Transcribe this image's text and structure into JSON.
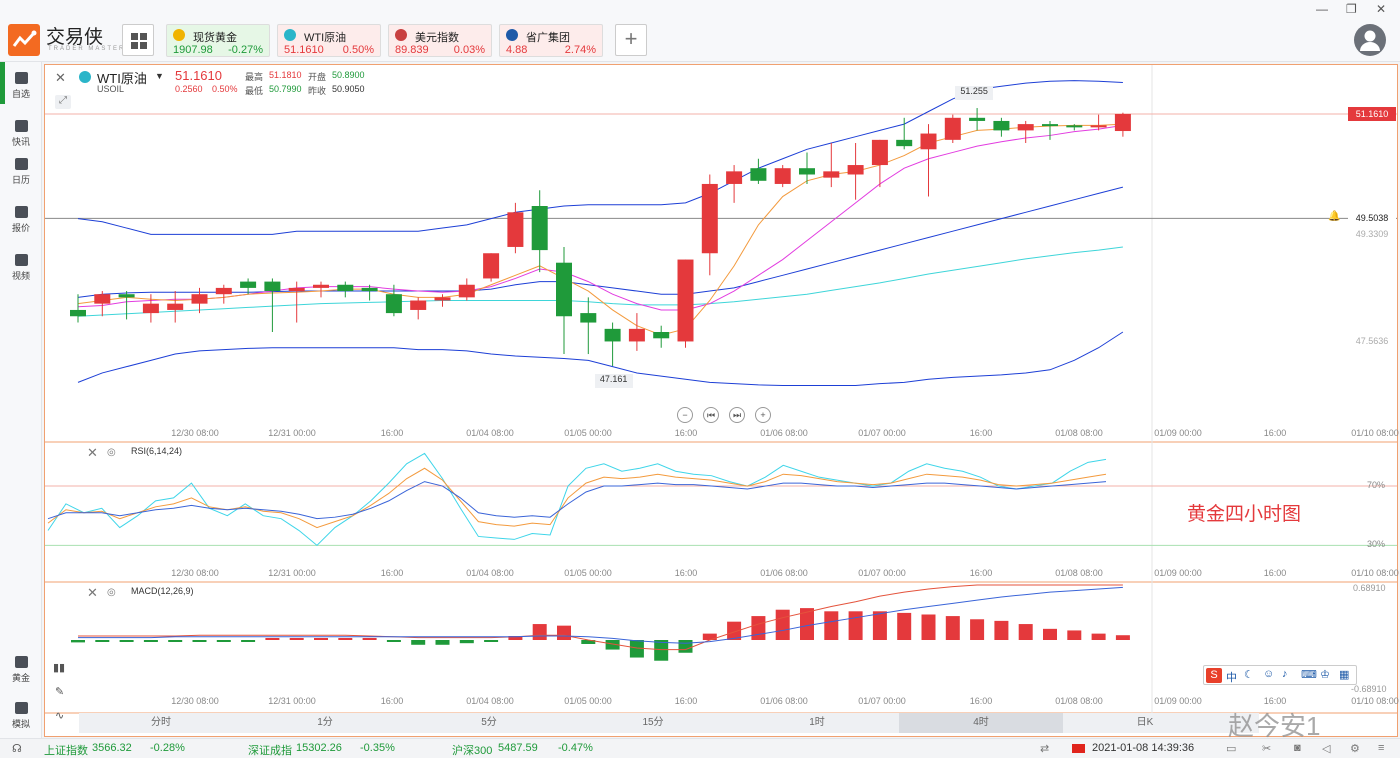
{
  "brand": {
    "name": "交易侠",
    "sub": "TRADER MASTER"
  },
  "tickers": [
    {
      "name": "现货黄金",
      "price": "1907.98",
      "change": "-0.27%",
      "bg": "#e6f7e6",
      "color": "#1f9a3a",
      "icon_color": "#f0b400"
    },
    {
      "name": "WTI原油",
      "price": "51.1610",
      "change": "0.50%",
      "bg": "#fdeceb",
      "color": "#e4393c",
      "icon_color": "#2bb5c9"
    },
    {
      "name": "美元指数",
      "price": "89.839",
      "change": "0.03%",
      "bg": "#fdeceb",
      "color": "#e4393c",
      "icon_color": "#c84040"
    },
    {
      "name": "省广集团",
      "price": "4.88",
      "change": "2.74%",
      "bg": "#fdeceb",
      "color": "#e4393c",
      "icon_color": "#1e5aa8"
    }
  ],
  "sidebar": [
    {
      "label": "自选",
      "icon": "star-bookmark-icon"
    },
    {
      "label": "快讯",
      "icon": "news-icon"
    },
    {
      "label": "日历",
      "icon": "calendar-icon"
    },
    {
      "label": "报价",
      "icon": "chart-line-icon"
    },
    {
      "label": "视频",
      "icon": "video-play-icon"
    },
    {
      "label": "黄金",
      "icon": "gold-icon"
    },
    {
      "label": "模拟",
      "icon": "wallet-icon"
    }
  ],
  "header": {
    "symbol": "WTI原油",
    "code": "USOIL",
    "price": "51.1610",
    "change": "0.2560",
    "change_pct": "0.50%",
    "high_label": "最高",
    "high": "51.1810",
    "open_label": "开盘",
    "open": "50.8900",
    "low_label": "最低",
    "low": "50.7990",
    "prev_label": "昨收",
    "prev": "50.9050"
  },
  "chart_data": [
    {
      "type": "candlestick",
      "title": "WTI原油",
      "x_ticks": [
        "12/30 08:00",
        "12/31 00:00",
        "16:00",
        "01/04 08:00",
        "01/05 00:00",
        "16:00",
        "01/06 08:00",
        "01/07 00:00",
        "16:00",
        "01/08 08:00",
        "01/09 00:00",
        "16:00",
        "01/10 08:00"
      ],
      "price_labels": {
        "current": "51.1610",
        "alert_line": "49.5038",
        "axis_upper": "49.3309",
        "axis_lower": "47.5636"
      },
      "annotations": {
        "high": "51.255",
        "low": "47.161"
      },
      "ylim": [
        46.7,
        51.7
      ],
      "candles": [
        [
          48.05,
          48.3,
          47.85,
          47.95
        ],
        [
          48.15,
          48.35,
          47.95,
          48.3
        ],
        [
          48.3,
          48.35,
          47.9,
          48.25
        ],
        [
          48.0,
          48.3,
          47.85,
          48.15
        ],
        [
          48.05,
          48.35,
          47.85,
          48.15
        ],
        [
          48.15,
          48.4,
          48.0,
          48.3
        ],
        [
          48.3,
          48.45,
          48.15,
          48.4
        ],
        [
          48.5,
          48.55,
          48.3,
          48.4
        ],
        [
          48.5,
          48.55,
          47.7,
          48.35
        ],
        [
          48.35,
          48.5,
          47.85,
          48.4
        ],
        [
          48.4,
          48.5,
          48.25,
          48.45
        ],
        [
          48.45,
          48.5,
          48.25,
          48.35
        ],
        [
          48.4,
          48.45,
          48.2,
          48.35
        ],
        [
          48.3,
          48.45,
          47.95,
          48.0
        ],
        [
          48.05,
          48.25,
          47.9,
          48.2
        ],
        [
          48.2,
          48.3,
          48.1,
          48.25
        ],
        [
          48.25,
          48.55,
          48.2,
          48.45
        ],
        [
          48.55,
          48.95,
          48.5,
          48.95
        ],
        [
          49.05,
          49.75,
          48.95,
          49.6
        ],
        [
          49.7,
          49.95,
          48.65,
          49.0
        ],
        [
          48.8,
          49.05,
          47.35,
          47.95
        ],
        [
          48.0,
          48.25,
          47.35,
          47.85
        ],
        [
          47.75,
          47.85,
          47.16,
          47.55
        ],
        [
          47.55,
          48.0,
          47.4,
          47.75
        ],
        [
          47.7,
          47.8,
          47.45,
          47.6
        ],
        [
          47.55,
          48.85,
          47.45,
          48.85
        ],
        [
          48.95,
          50.2,
          48.6,
          50.05
        ],
        [
          50.05,
          50.35,
          49.75,
          50.25
        ],
        [
          50.3,
          50.45,
          50.05,
          50.1
        ],
        [
          50.05,
          50.35,
          50.0,
          50.3
        ],
        [
          50.3,
          50.55,
          50.05,
          50.2
        ],
        [
          50.15,
          50.7,
          50.0,
          50.25
        ],
        [
          50.2,
          50.7,
          49.8,
          50.35
        ],
        [
          50.35,
          50.75,
          50.0,
          50.75
        ],
        [
          50.75,
          51.1,
          50.6,
          50.65
        ],
        [
          50.6,
          51.0,
          49.85,
          50.85
        ],
        [
          50.75,
          51.15,
          50.7,
          51.1
        ],
        [
          51.1,
          51.255,
          50.9,
          51.05
        ],
        [
          51.05,
          51.1,
          50.8,
          50.9
        ],
        [
          50.9,
          51.05,
          50.7,
          51.0
        ],
        [
          51.0,
          51.05,
          50.75,
          50.98
        ],
        [
          50.98,
          51.0,
          50.9,
          50.96
        ],
        [
          50.96,
          51.15,
          50.9,
          50.98
        ],
        [
          50.89,
          51.181,
          50.8,
          51.161
        ]
      ],
      "boll_upper": [
        49.5,
        49.45,
        49.35,
        49.25,
        49.25,
        49.25,
        49.25,
        49.25,
        49.25,
        49.3,
        49.3,
        49.3,
        49.3,
        49.3,
        49.3,
        49.35,
        49.4,
        49.5,
        49.6,
        49.65,
        49.7,
        49.72,
        49.72,
        49.72,
        49.72,
        49.75,
        49.9,
        50.1,
        50.3,
        50.45,
        50.6,
        50.7,
        50.8,
        50.9,
        51.0,
        51.2,
        51.4,
        51.55,
        51.6,
        51.65,
        51.68,
        51.69,
        51.68,
        51.66
      ],
      "boll_mid": [
        48.25,
        48.3,
        48.32,
        48.33,
        48.33,
        48.33,
        48.33,
        48.33,
        48.34,
        48.35,
        48.35,
        48.35,
        48.35,
        48.35,
        48.35,
        48.35,
        48.35,
        48.38,
        48.45,
        48.5,
        48.5,
        48.45,
        48.4,
        48.35,
        48.3,
        48.3,
        48.35,
        48.4,
        48.5,
        48.6,
        48.7,
        48.8,
        48.9,
        49.0,
        49.1,
        49.2,
        49.3,
        49.4,
        49.5,
        49.6,
        49.7,
        49.8,
        49.9,
        50.0
      ],
      "boll_lower": [
        46.9,
        47.05,
        47.15,
        47.25,
        47.35,
        47.4,
        47.42,
        47.44,
        47.45,
        47.45,
        47.45,
        47.45,
        47.45,
        47.45,
        47.42,
        47.42,
        47.4,
        47.35,
        47.32,
        47.3,
        47.28,
        47.25,
        47.15,
        47.05,
        47.0,
        46.95,
        46.9,
        46.88,
        46.86,
        46.85,
        46.85,
        46.85,
        46.85,
        46.88,
        46.9,
        46.95,
        46.98,
        47.0,
        47.02,
        47.05,
        47.1,
        47.25,
        47.45,
        47.7
      ],
      "ma_orange": [
        48.15,
        48.2,
        48.25,
        48.22,
        48.2,
        48.22,
        48.25,
        48.3,
        48.32,
        48.33,
        48.35,
        48.38,
        48.38,
        48.3,
        48.25,
        48.25,
        48.3,
        48.45,
        48.6,
        48.75,
        48.55,
        48.35,
        48.05,
        47.8,
        47.65,
        47.75,
        48.2,
        48.75,
        49.4,
        49.85,
        50.1,
        50.2,
        50.25,
        50.35,
        50.5,
        50.7,
        50.8,
        50.9,
        50.92,
        50.95,
        50.97,
        50.98,
        50.98,
        51.0
      ],
      "ma_magenta": [
        48.1,
        48.12,
        48.18,
        48.2,
        48.22,
        48.22,
        48.25,
        48.3,
        48.35,
        48.4,
        48.42,
        48.42,
        48.42,
        48.38,
        48.35,
        48.33,
        48.35,
        48.42,
        48.55,
        48.7,
        48.65,
        48.5,
        48.3,
        48.15,
        48.05,
        48.05,
        48.15,
        48.35,
        48.6,
        48.85,
        49.15,
        49.45,
        49.75,
        50.05,
        50.3,
        50.45,
        50.55,
        50.65,
        50.72,
        50.78,
        50.82,
        50.88,
        50.92,
        50.98
      ],
      "ma_cyan": [
        47.95,
        47.97,
        47.99,
        48.01,
        48.03,
        48.05,
        48.07,
        48.09,
        48.11,
        48.13,
        48.15,
        48.16,
        48.17,
        48.18,
        48.19,
        48.2,
        48.2,
        48.2,
        48.2,
        48.2,
        48.2,
        48.18,
        48.15,
        48.13,
        48.13,
        48.13,
        48.15,
        48.18,
        48.22,
        48.26,
        48.3,
        48.36,
        48.42,
        48.48,
        48.55,
        48.62,
        48.68,
        48.74,
        48.8,
        48.86,
        48.91,
        48.96,
        49.0,
        49.05
      ]
    },
    {
      "type": "line",
      "title": "RSI(6,14,24)",
      "levels": [
        "70%",
        "30%"
      ],
      "overlay_text": "黄金四小时图",
      "x_ticks": [
        "12/30 08:00",
        "12/31 00:00",
        "16:00",
        "01/04 08:00",
        "01/05 00:00",
        "16:00",
        "01/06 08:00",
        "01/07 00:00",
        "16:00",
        "01/08 08:00",
        "01/09 00:00",
        "16:00",
        "01/10 08:00"
      ],
      "series": [
        {
          "values": [
            40,
            58,
            52,
            55,
            42,
            50,
            60,
            62,
            72,
            55,
            50,
            58,
            50,
            48,
            40,
            30,
            42,
            50,
            60,
            72,
            85,
            92,
            75,
            55,
            36,
            35,
            34,
            38,
            37,
            70,
            82,
            85,
            80,
            82,
            85,
            80,
            78,
            77,
            73,
            70,
            76,
            84,
            80,
            76,
            74,
            72,
            70,
            72,
            80,
            85,
            82,
            80,
            76,
            70,
            68,
            70,
            72,
            80,
            86,
            88
          ]
        },
        {
          "values": [
            45,
            54,
            52,
            53,
            48,
            52,
            56,
            58,
            62,
            56,
            54,
            56,
            53,
            52,
            48,
            42,
            46,
            50,
            57,
            65,
            75,
            82,
            74,
            60,
            46,
            44,
            43,
            45,
            44,
            62,
            72,
            76,
            75,
            76,
            78,
            76,
            75,
            74,
            72,
            70,
            73,
            78,
            77,
            75,
            73,
            72,
            71,
            72,
            75,
            78,
            77,
            76,
            74,
            71,
            70,
            71,
            72,
            74,
            76,
            78
          ]
        },
        {
          "values": [
            48,
            52,
            52,
            52,
            50,
            52,
            54,
            55,
            57,
            55,
            54,
            55,
            54,
            53,
            51,
            48,
            49,
            51,
            55,
            60,
            67,
            73,
            70,
            62,
            52,
            50,
            49,
            50,
            49,
            58,
            66,
            70,
            70,
            71,
            72,
            71,
            71,
            70,
            69,
            68,
            70,
            72,
            72,
            71,
            70,
            70,
            69,
            70,
            71,
            72,
            72,
            71,
            70,
            69,
            68,
            69,
            70,
            71,
            72,
            73
          ]
        }
      ]
    },
    {
      "type": "bar",
      "title": "MACD(12,26,9)",
      "x_ticks": [
        "12/30 08:00",
        "12/31 00:00",
        "16:00",
        "01/04 08:00",
        "01/05 00:00",
        "16:00",
        "01/06 08:00",
        "01/07 00:00",
        "16:00",
        "01/08 08:00",
        "01/09 00:00",
        "16:00",
        "01/10 08:00"
      ],
      "ylim": [
        "-0.68910",
        "0.68910"
      ],
      "values": [
        -0.03,
        -0.02,
        -0.02,
        -0.02,
        -0.02,
        -0.02,
        -0.02,
        -0.02,
        0.01,
        0.01,
        0.01,
        0.01,
        0.01,
        -0.02,
        -0.06,
        -0.06,
        -0.04,
        -0.02,
        0.05,
        0.2,
        0.18,
        -0.05,
        -0.12,
        -0.22,
        -0.26,
        -0.16,
        0.08,
        0.23,
        0.3,
        0.38,
        0.4,
        0.36,
        0.36,
        0.36,
        0.34,
        0.32,
        0.3,
        0.26,
        0.24,
        0.2,
        0.14,
        0.12,
        0.08,
        0.06
      ],
      "series": [
        {
          "values": [
            0.05,
            0.05,
            0.05,
            0.05,
            0.05,
            0.06,
            0.06,
            0.06,
            0.06,
            0.06,
            0.06,
            0.06,
            0.05,
            0.04,
            0.03,
            0.03,
            0.03,
            0.03,
            0.04,
            0.06,
            0.06,
            0.0,
            -0.05,
            -0.1,
            -0.12,
            -0.12,
            0.0,
            0.1,
            0.2,
            0.28,
            0.35,
            0.42,
            0.48,
            0.55,
            0.6,
            0.64,
            0.67,
            0.69,
            0.69,
            0.69,
            0.69,
            0.69,
            0.69,
            0.69
          ]
        },
        {
          "values": [
            0.03,
            0.03,
            0.03,
            0.03,
            0.04,
            0.04,
            0.04,
            0.04,
            0.04,
            0.04,
            0.04,
            0.04,
            0.04,
            0.04,
            0.04,
            0.04,
            0.04,
            0.04,
            0.04,
            0.05,
            0.05,
            0.04,
            0.02,
            -0.01,
            -0.03,
            -0.04,
            -0.02,
            0.02,
            0.07,
            0.12,
            0.18,
            0.23,
            0.28,
            0.33,
            0.38,
            0.42,
            0.46,
            0.5,
            0.54,
            0.57,
            0.6,
            0.62,
            0.64,
            0.66
          ]
        }
      ]
    }
  ],
  "controls": {
    "zoom_out": "−",
    "prev": "⏮",
    "next": "⏭",
    "zoom_in": "+"
  },
  "timeframes": [
    "分时",
    "1分",
    "5分",
    "15分",
    "1时",
    "4时",
    "日K"
  ],
  "active_timeframe": "4时",
  "toolbar_icons": [
    "sogou-ime-icon",
    "zh-icon",
    "moon-icon",
    "emoji-icon",
    "mic-icon",
    "keyboard-icon",
    "shirt-icon",
    "grid-icon"
  ],
  "ime_text": "中",
  "watermark": "赵今安1",
  "statusbar": {
    "indices": [
      {
        "name": "上证指数",
        "value": "3566.32",
        "change": "-0.28%"
      },
      {
        "name": "深证成指",
        "value": "15302.26",
        "change": "-0.35%"
      },
      {
        "name": "沪深300",
        "value": "5487.59",
        "change": "-0.47%"
      }
    ],
    "datetime": "2021-01-08 14:39:36"
  },
  "colors": {
    "up": "#e4393c",
    "down": "#1f9a3a",
    "boll": "#1d3fd6",
    "ma_orange": "#f39a3d",
    "ma_magenta": "#e23ce0",
    "ma_cyan": "#3ed5d9",
    "rsi1": "#3ed5e9",
    "rsi2": "#f39a3d",
    "rsi3": "#3a64d8"
  }
}
